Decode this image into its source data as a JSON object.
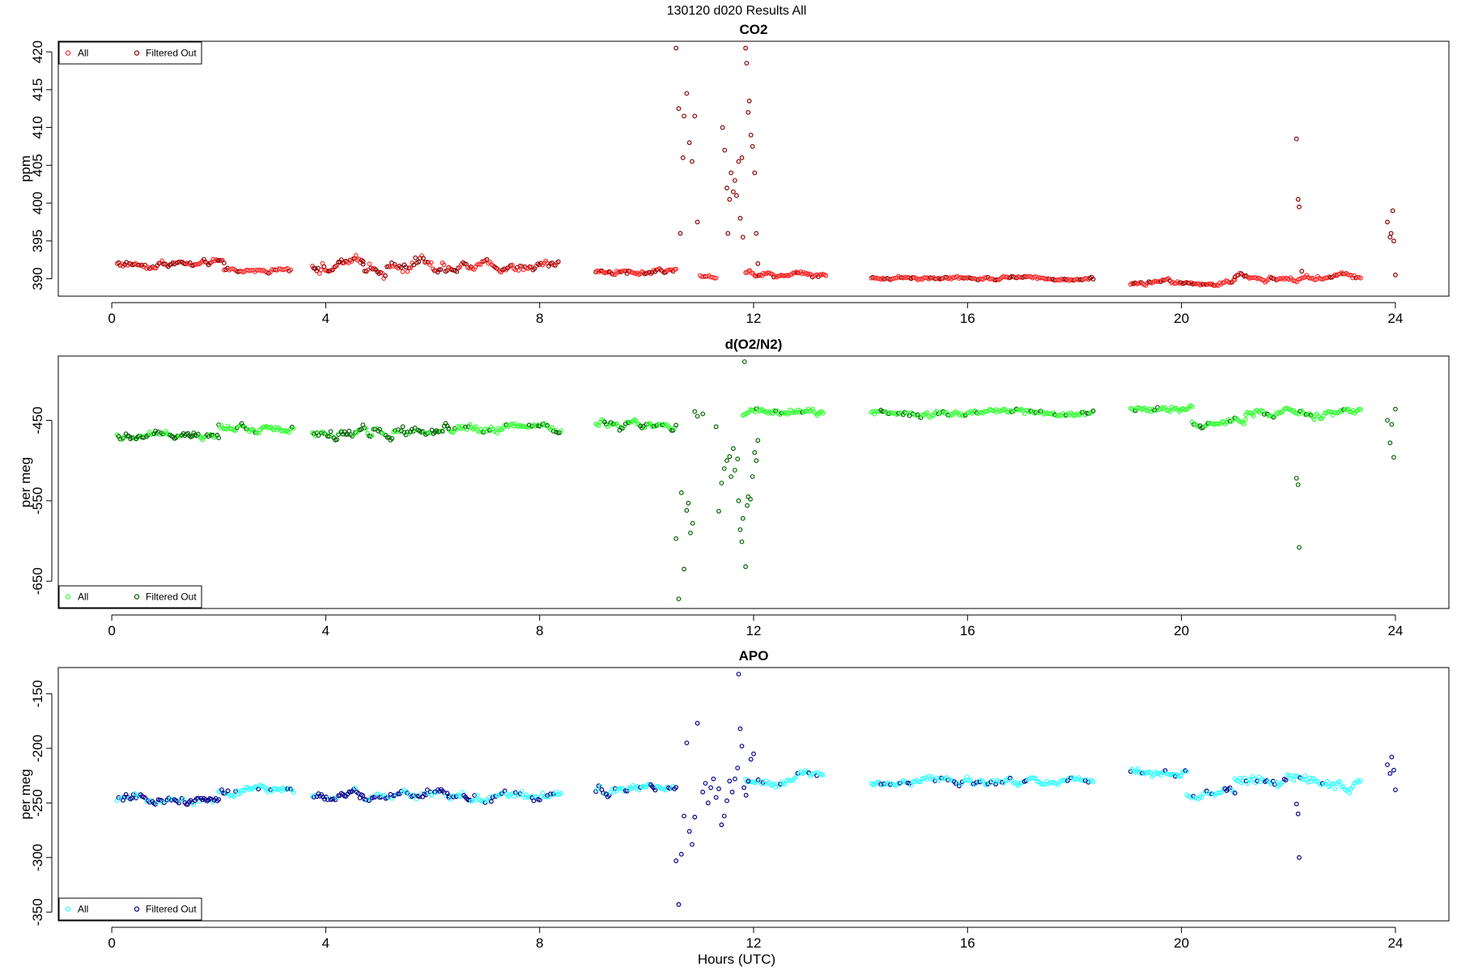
{
  "figure": {
    "title": "130120   d020   Results All",
    "xlabel": "Hours (UTC)"
  },
  "chart_data": [
    {
      "type": "scatter",
      "title": "CO2",
      "xlabel": "",
      "ylabel": "ppm",
      "xlim": [
        -1.0,
        25.0
      ],
      "ylim": [
        387.7,
        421.4
      ],
      "xticks": [
        0,
        4,
        8,
        12,
        16,
        20,
        24
      ],
      "yticks": [
        390,
        395,
        400,
        405,
        410,
        415,
        420
      ],
      "legend_position": "top-left",
      "colors": {
        "all": "#ff2a2a",
        "filtered": "#8b0000"
      },
      "series": [
        {
          "name": "All",
          "segments": [
            {
              "x0": 0.1,
              "x1": 2.1,
              "n": 70,
              "base": 392.0,
              "noise": 0.55,
              "filt": 0.6
            },
            {
              "x0": 2.1,
              "x1": 3.35,
              "n": 40,
              "base": 391.1,
              "noise": 0.35,
              "filt": 0.15
            },
            {
              "x0": 3.75,
              "x1": 4.7,
              "n": 36,
              "base": 391.8,
              "noise": 0.9,
              "filt": 0.5
            },
            {
              "x0": 4.7,
              "x1": 6.3,
              "n": 55,
              "base": 392.0,
              "noise": 1.3,
              "filt": 0.7
            },
            {
              "x0": 6.3,
              "x1": 8.35,
              "n": 70,
              "base": 391.7,
              "noise": 0.7,
              "filt": 0.5
            },
            {
              "x0": 9.05,
              "x1": 10.55,
              "n": 55,
              "base": 391.0,
              "noise": 0.5,
              "filt": 0.35
            },
            {
              "x0": 11.0,
              "x1": 11.3,
              "n": 10,
              "base": 390.4,
              "noise": 0.35,
              "filt": 0.1
            },
            {
              "x0": 11.85,
              "x1": 13.35,
              "n": 55,
              "base": 390.7,
              "noise": 0.45,
              "filt": 0.1
            },
            {
              "x0": 14.2,
              "x1": 18.35,
              "n": 140,
              "base": 390.1,
              "noise": 0.3,
              "filt": 0.25
            },
            {
              "x0": 19.05,
              "x1": 21.0,
              "n": 70,
              "base": 389.4,
              "noise": 0.45,
              "filt": 0.2
            },
            {
              "x0": 21.0,
              "x1": 23.35,
              "n": 80,
              "base": 390.2,
              "noise": 0.45,
              "filt": 0.15
            }
          ]
        },
        {
          "name": "Filtered Out",
          "points": [
            [
              10.55,
              420.5
            ],
            [
              10.6,
              412.5
            ],
            [
              10.63,
              396.0
            ],
            [
              10.68,
              406.0
            ],
            [
              10.7,
              411.5
            ],
            [
              10.75,
              414.5
            ],
            [
              10.8,
              408.0
            ],
            [
              10.85,
              405.5
            ],
            [
              10.9,
              411.5
            ],
            [
              10.95,
              397.5
            ],
            [
              11.42,
              410.0
            ],
            [
              11.46,
              407.0
            ],
            [
              11.5,
              402.0
            ],
            [
              11.52,
              396.0
            ],
            [
              11.55,
              400.5
            ],
            [
              11.58,
              404.0
            ],
            [
              11.62,
              401.5
            ],
            [
              11.65,
              403.0
            ],
            [
              11.68,
              401.0
            ],
            [
              11.72,
              405.5
            ],
            [
              11.75,
              398.0
            ],
            [
              11.78,
              406.0
            ],
            [
              11.8,
              395.5
            ],
            [
              11.85,
              420.5
            ],
            [
              11.87,
              418.5
            ],
            [
              11.9,
              412.0
            ],
            [
              11.92,
              413.5
            ],
            [
              11.95,
              409.0
            ],
            [
              11.98,
              407.5
            ],
            [
              12.02,
              404.0
            ],
            [
              12.05,
              396.0
            ],
            [
              12.08,
              392.0
            ],
            [
              22.15,
              408.5
            ],
            [
              22.18,
              400.5
            ],
            [
              22.2,
              399.5
            ],
            [
              22.25,
              391.0
            ],
            [
              23.85,
              397.5
            ],
            [
              23.9,
              395.5
            ],
            [
              23.92,
              396.0
            ],
            [
              23.95,
              399.0
            ],
            [
              23.97,
              395.0
            ],
            [
              24.0,
              390.5
            ]
          ]
        }
      ]
    },
    {
      "type": "scatter",
      "title": "d(O2/N2)",
      "xlabel": "",
      "ylabel": "per meg",
      "xlim": [
        -1.0,
        25.0
      ],
      "ylim": [
        -684,
        -370
      ],
      "xticks": [
        0,
        4,
        8,
        12,
        16,
        20,
        24
      ],
      "yticks": [
        -450,
        -550,
        -650
      ],
      "legend_position": "bottom-left",
      "colors": {
        "all": "#33ff33",
        "filtered": "#006400"
      },
      "series": [
        {
          "name": "All",
          "segments": [
            {
              "x0": 0.1,
              "x1": 2.0,
              "n": 70,
              "base": -466,
              "noise": 6,
              "filt": 0.6
            },
            {
              "x0": 2.0,
              "x1": 3.4,
              "n": 50,
              "base": -458,
              "noise": 6,
              "filt": 0.15
            },
            {
              "x0": 3.75,
              "x1": 6.3,
              "n": 90,
              "base": -466,
              "noise": 9,
              "filt": 0.6
            },
            {
              "x0": 6.3,
              "x1": 8.4,
              "n": 75,
              "base": -462,
              "noise": 6,
              "filt": 0.3
            },
            {
              "x0": 9.05,
              "x1": 10.55,
              "n": 55,
              "base": -456,
              "noise": 6,
              "filt": 0.35
            },
            {
              "x0": 11.8,
              "x1": 13.3,
              "n": 55,
              "base": -442,
              "noise": 6,
              "filt": 0.1
            },
            {
              "x0": 14.2,
              "x1": 18.35,
              "n": 140,
              "base": -440,
              "noise": 5,
              "filt": 0.2
            },
            {
              "x0": 19.05,
              "x1": 20.2,
              "n": 40,
              "base": -436,
              "noise": 6,
              "filt": 0.1
            },
            {
              "x0": 20.2,
              "x1": 21.2,
              "n": 35,
              "base": -451,
              "noise": 6,
              "filt": 0.3
            },
            {
              "x0": 21.2,
              "x1": 23.35,
              "n": 75,
              "base": -440,
              "noise": 6,
              "filt": 0.15
            }
          ]
        },
        {
          "name": "Filtered Out",
          "points": [
            [
              10.55,
              -597
            ],
            [
              10.6,
              -672
            ],
            [
              10.65,
              -540
            ],
            [
              10.7,
              -635
            ],
            [
              10.75,
              -562
            ],
            [
              10.78,
              -553
            ],
            [
              10.82,
              -590
            ],
            [
              10.86,
              -578
            ],
            [
              10.9,
              -439
            ],
            [
              10.95,
              -445
            ],
            [
              11.05,
              -442
            ],
            [
              11.3,
              -458
            ],
            [
              11.35,
              -563
            ],
            [
              11.4,
              -528
            ],
            [
              11.45,
              -510
            ],
            [
              11.5,
              -500
            ],
            [
              11.55,
              -495
            ],
            [
              11.58,
              -520
            ],
            [
              11.62,
              -485
            ],
            [
              11.65,
              -512
            ],
            [
              11.7,
              -498
            ],
            [
              11.72,
              -550
            ],
            [
              11.75,
              -586
            ],
            [
              11.78,
              -601
            ],
            [
              11.8,
              -572
            ],
            [
              11.85,
              -632
            ],
            [
              11.88,
              -556
            ],
            [
              11.9,
              -545
            ],
            [
              11.94,
              -548
            ],
            [
              11.98,
              -520
            ],
            [
              12.02,
              -490
            ],
            [
              12.05,
              -500
            ],
            [
              12.08,
              -475
            ],
            [
              11.83,
              -377
            ],
            [
              22.15,
              -522
            ],
            [
              22.18,
              -530
            ],
            [
              22.2,
              -608
            ],
            [
              23.85,
              -450
            ],
            [
              23.9,
              -478
            ],
            [
              23.93,
              -455
            ],
            [
              23.97,
              -496
            ],
            [
              24.0,
              -436
            ]
          ]
        }
      ]
    },
    {
      "type": "scatter",
      "title": "APO",
      "xlabel": "Hours (UTC)",
      "ylabel": "per meg",
      "xlim": [
        -1.0,
        25.0
      ],
      "ylim": [
        -358,
        -126
      ],
      "xticks": [
        0,
        4,
        8,
        12,
        16,
        20,
        24
      ],
      "yticks": [
        -150,
        -200,
        -250,
        -300,
        -350
      ],
      "legend_position": "bottom-left",
      "colors": {
        "all": "#33ffff",
        "filtered": "#00008b"
      },
      "series": [
        {
          "name": "All",
          "segments": [
            {
              "x0": 0.1,
              "x1": 2.0,
              "n": 70,
              "base": -246,
              "noise": 5,
              "filt": 0.7
            },
            {
              "x0": 2.0,
              "x1": 3.4,
              "n": 50,
              "base": -240,
              "noise": 5,
              "filt": 0.2
            },
            {
              "x0": 3.75,
              "x1": 6.3,
              "n": 90,
              "base": -243,
              "noise": 5,
              "filt": 0.7
            },
            {
              "x0": 6.3,
              "x1": 8.4,
              "n": 75,
              "base": -243,
              "noise": 5,
              "filt": 0.35
            },
            {
              "x0": 9.05,
              "x1": 10.55,
              "n": 55,
              "base": -239,
              "noise": 5,
              "filt": 0.4
            },
            {
              "x0": 11.85,
              "x1": 13.3,
              "n": 50,
              "base": -227,
              "noise": 5,
              "filt": 0.15
            },
            {
              "x0": 14.2,
              "x1": 18.35,
              "n": 140,
              "base": -230,
              "noise": 4,
              "filt": 0.2
            },
            {
              "x0": 19.05,
              "x1": 20.1,
              "n": 40,
              "base": -222,
              "noise": 5,
              "filt": 0.1
            },
            {
              "x0": 20.1,
              "x1": 21.0,
              "n": 30,
              "base": -242,
              "noise": 5,
              "filt": 0.3
            },
            {
              "x0": 21.0,
              "x1": 23.35,
              "n": 80,
              "base": -231,
              "noise": 6,
              "filt": 0.15
            }
          ]
        },
        {
          "name": "Filtered Out",
          "points": [
            [
              10.55,
              -303
            ],
            [
              10.6,
              -343
            ],
            [
              10.65,
              -297
            ],
            [
              10.7,
              -262
            ],
            [
              10.75,
              -195
            ],
            [
              10.8,
              -276
            ],
            [
              10.85,
              -288
            ],
            [
              10.9,
              -263
            ],
            [
              10.95,
              -177
            ],
            [
              11.05,
              -240
            ],
            [
              11.1,
              -232
            ],
            [
              11.15,
              -250
            ],
            [
              11.2,
              -236
            ],
            [
              11.25,
              -228
            ],
            [
              11.3,
              -245
            ],
            [
              11.35,
              -237
            ],
            [
              11.4,
              -270
            ],
            [
              11.45,
              -262
            ],
            [
              11.5,
              -248
            ],
            [
              11.55,
              -230
            ],
            [
              11.6,
              -240
            ],
            [
              11.65,
              -228
            ],
            [
              11.7,
              -218
            ],
            [
              11.72,
              -132
            ],
            [
              11.75,
              -182
            ],
            [
              11.78,
              -198
            ],
            [
              11.82,
              -236
            ],
            [
              11.86,
              -243
            ],
            [
              11.9,
              -230
            ],
            [
              11.95,
              -210
            ],
            [
              12.0,
              -205
            ],
            [
              22.15,
              -251
            ],
            [
              22.18,
              -260
            ],
            [
              22.2,
              -300
            ],
            [
              23.85,
              -215
            ],
            [
              23.9,
              -223
            ],
            [
              23.93,
              -208
            ],
            [
              23.97,
              -220
            ],
            [
              24.0,
              -238
            ]
          ]
        }
      ]
    }
  ]
}
